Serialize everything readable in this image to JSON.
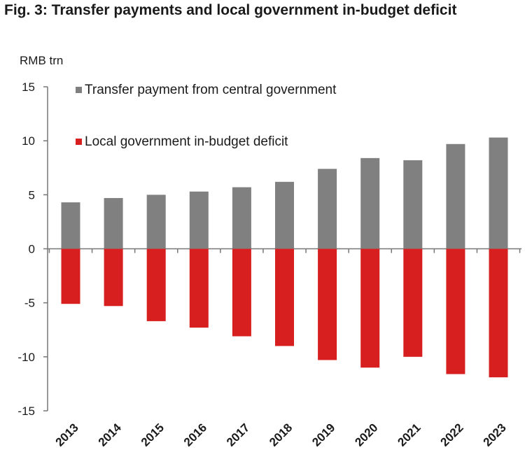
{
  "figure": {
    "title": "Fig. 3: Transfer payments and local government in-budget deficit"
  },
  "chart_data": {
    "type": "bar",
    "unit_label": "RMB trn",
    "categories": [
      "2013",
      "2014",
      "2015",
      "2016",
      "2017",
      "2018",
      "2019",
      "2020",
      "2021",
      "2022",
      "2023"
    ],
    "series": [
      {
        "name": "Transfer payment from central government",
        "color": "#808080",
        "values": [
          4.3,
          4.7,
          5.0,
          5.3,
          5.7,
          6.2,
          7.4,
          8.4,
          8.2,
          9.7,
          10.3
        ]
      },
      {
        "name": "Local government in-budget deficit",
        "color": "#d71f1f",
        "values": [
          -5.1,
          -5.3,
          -6.7,
          -7.3,
          -8.1,
          -9.0,
          -10.3,
          -11.0,
          -10.0,
          -11.6,
          -11.9
        ]
      }
    ],
    "ylim": [
      -15,
      15
    ],
    "yticks": [
      15,
      10,
      5,
      0,
      -5,
      -10,
      -15
    ],
    "ytick_labels": [
      "15",
      "10",
      "5",
      "0",
      "-5",
      "-10",
      "-15"
    ],
    "stacked": false,
    "grid": false,
    "legend_position": "top-left"
  }
}
